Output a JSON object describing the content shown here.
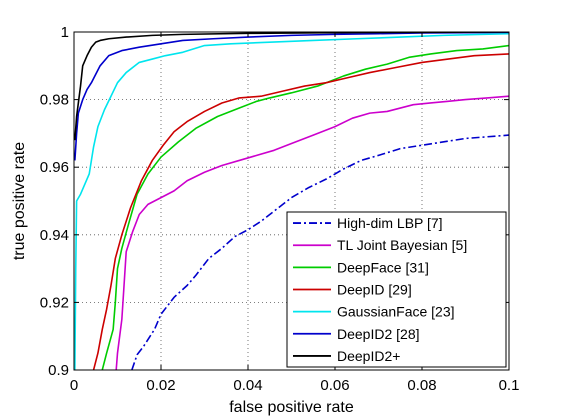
{
  "chart_data": {
    "type": "line",
    "title": "",
    "xlabel": "false positive rate",
    "ylabel": "true positive rate",
    "xlim": [
      0,
      0.1
    ],
    "ylim": [
      0.9,
      1
    ],
    "x_ticks": [
      "0",
      "0.02",
      "0.04",
      "0.06",
      "0.08",
      "0.1"
    ],
    "y_ticks": [
      "0.9",
      "0.92",
      "0.94",
      "0.96",
      "0.98",
      "1"
    ],
    "grid": true,
    "legend_position": "bottom-right",
    "series": [
      {
        "name": "High-dim LBP [7]",
        "color": "#0000cc",
        "dash": "dashdot",
        "points": [
          [
            0.0133,
            0.9
          ],
          [
            0.0145,
            0.9045
          ],
          [
            0.016,
            0.907
          ],
          [
            0.0185,
            0.912
          ],
          [
            0.02,
            0.9165
          ],
          [
            0.023,
            0.9215
          ],
          [
            0.026,
            0.925
          ],
          [
            0.028,
            0.928
          ],
          [
            0.031,
            0.933
          ],
          [
            0.034,
            0.936
          ],
          [
            0.037,
            0.9395
          ],
          [
            0.04,
            0.9415
          ],
          [
            0.043,
            0.944
          ],
          [
            0.046,
            0.947
          ],
          [
            0.05,
            0.951
          ],
          [
            0.054,
            0.954
          ],
          [
            0.058,
            0.9565
          ],
          [
            0.062,
            0.9595
          ],
          [
            0.066,
            0.962
          ],
          [
            0.07,
            0.9635
          ],
          [
            0.075,
            0.9655
          ],
          [
            0.08,
            0.9665
          ],
          [
            0.085,
            0.9675
          ],
          [
            0.09,
            0.9685
          ],
          [
            0.095,
            0.969
          ],
          [
            0.1,
            0.9695
          ]
        ]
      },
      {
        "name": "TL Joint Bayesian [5]",
        "color": "#cc00cc",
        "dash": "solid",
        "points": [
          [
            0.0097,
            0.9
          ],
          [
            0.01,
            0.905
          ],
          [
            0.011,
            0.915
          ],
          [
            0.0115,
            0.925
          ],
          [
            0.012,
            0.935
          ],
          [
            0.0135,
            0.941
          ],
          [
            0.015,
            0.946
          ],
          [
            0.017,
            0.949
          ],
          [
            0.02,
            0.951
          ],
          [
            0.023,
            0.953
          ],
          [
            0.026,
            0.956
          ],
          [
            0.03,
            0.9585
          ],
          [
            0.034,
            0.9605
          ],
          [
            0.038,
            0.962
          ],
          [
            0.042,
            0.9635
          ],
          [
            0.046,
            0.965
          ],
          [
            0.05,
            0.967
          ],
          [
            0.055,
            0.9695
          ],
          [
            0.06,
            0.972
          ],
          [
            0.064,
            0.9745
          ],
          [
            0.068,
            0.976
          ],
          [
            0.072,
            0.9765
          ],
          [
            0.075,
            0.9775
          ],
          [
            0.078,
            0.9785
          ],
          [
            0.082,
            0.979
          ],
          [
            0.086,
            0.9795
          ],
          [
            0.09,
            0.98
          ],
          [
            0.095,
            0.9805
          ],
          [
            0.1,
            0.981
          ]
        ]
      },
      {
        "name": "DeepFace [31]",
        "color": "#00cc00",
        "dash": "solid",
        "points": [
          [
            0.0065,
            0.9
          ],
          [
            0.0075,
            0.905
          ],
          [
            0.009,
            0.912
          ],
          [
            0.0095,
            0.92
          ],
          [
            0.01,
            0.93
          ],
          [
            0.011,
            0.936
          ],
          [
            0.0125,
            0.943
          ],
          [
            0.0145,
            0.952
          ],
          [
            0.017,
            0.958
          ],
          [
            0.02,
            0.963
          ],
          [
            0.024,
            0.9675
          ],
          [
            0.028,
            0.9715
          ],
          [
            0.033,
            0.975
          ],
          [
            0.038,
            0.9775
          ],
          [
            0.042,
            0.9795
          ],
          [
            0.045,
            0.9805
          ],
          [
            0.05,
            0.982
          ],
          [
            0.056,
            0.984
          ],
          [
            0.062,
            0.987
          ],
          [
            0.067,
            0.989
          ],
          [
            0.072,
            0.9905
          ],
          [
            0.077,
            0.9925
          ],
          [
            0.082,
            0.9935
          ],
          [
            0.088,
            0.9945
          ],
          [
            0.094,
            0.995
          ],
          [
            0.1,
            0.996
          ]
        ]
      },
      {
        "name": "DeepID [29]",
        "color": "#cc0000",
        "dash": "solid",
        "points": [
          [
            0.0045,
            0.9
          ],
          [
            0.0055,
            0.905
          ],
          [
            0.0065,
            0.912
          ],
          [
            0.0075,
            0.918
          ],
          [
            0.0085,
            0.925
          ],
          [
            0.0095,
            0.933
          ],
          [
            0.011,
            0.94
          ],
          [
            0.013,
            0.948
          ],
          [
            0.0155,
            0.956
          ],
          [
            0.018,
            0.962
          ],
          [
            0.0205,
            0.9665
          ],
          [
            0.023,
            0.9705
          ],
          [
            0.026,
            0.9735
          ],
          [
            0.03,
            0.9765
          ],
          [
            0.034,
            0.979
          ],
          [
            0.038,
            0.9805
          ],
          [
            0.043,
            0.981
          ],
          [
            0.048,
            0.9825
          ],
          [
            0.053,
            0.984
          ],
          [
            0.058,
            0.985
          ],
          [
            0.063,
            0.9865
          ],
          [
            0.068,
            0.988
          ],
          [
            0.074,
            0.9895
          ],
          [
            0.08,
            0.991
          ],
          [
            0.086,
            0.992
          ],
          [
            0.092,
            0.993
          ],
          [
            0.1,
            0.9935
          ]
        ]
      },
      {
        "name": "GaussianFace [23]",
        "color": "#00e5ee",
        "dash": "solid",
        "points": [
          [
            0.0002,
            0.9
          ],
          [
            0.0004,
            0.93
          ],
          [
            0.0006,
            0.95
          ],
          [
            0.0015,
            0.952
          ],
          [
            0.0025,
            0.955
          ],
          [
            0.0035,
            0.958
          ],
          [
            0.0045,
            0.966
          ],
          [
            0.0055,
            0.972
          ],
          [
            0.007,
            0.977
          ],
          [
            0.0085,
            0.981
          ],
          [
            0.01,
            0.985
          ],
          [
            0.012,
            0.988
          ],
          [
            0.015,
            0.991
          ],
          [
            0.018,
            0.992
          ],
          [
            0.021,
            0.993
          ],
          [
            0.025,
            0.994
          ],
          [
            0.03,
            0.996
          ],
          [
            0.036,
            0.9965
          ],
          [
            0.045,
            0.997
          ],
          [
            0.055,
            0.9975
          ],
          [
            0.065,
            0.998
          ],
          [
            0.075,
            0.9985
          ],
          [
            0.085,
            0.999
          ],
          [
            0.1,
            0.9995
          ]
        ]
      },
      {
        "name": "DeepID2 [28]",
        "color": "#0000cc",
        "dash": "solid",
        "points": [
          [
            0.0002,
            0.962
          ],
          [
            0.0006,
            0.97
          ],
          [
            0.001,
            0.976
          ],
          [
            0.002,
            0.98
          ],
          [
            0.003,
            0.983
          ],
          [
            0.004,
            0.985
          ],
          [
            0.006,
            0.99
          ],
          [
            0.008,
            0.993
          ],
          [
            0.011,
            0.9945
          ],
          [
            0.015,
            0.9955
          ],
          [
            0.02,
            0.9965
          ],
          [
            0.025,
            0.9975
          ],
          [
            0.032,
            0.998
          ],
          [
            0.04,
            0.9985
          ],
          [
            0.05,
            0.999
          ],
          [
            0.06,
            0.9993
          ],
          [
            0.07,
            0.9995
          ],
          [
            0.08,
            0.9997
          ],
          [
            0.09,
            0.9998
          ],
          [
            0.1,
            0.9999
          ]
        ]
      },
      {
        "name": "DeepID2+",
        "color": "#000000",
        "dash": "solid",
        "points": [
          [
            0.0002,
            0.968
          ],
          [
            0.0006,
            0.975
          ],
          [
            0.001,
            0.979
          ],
          [
            0.0015,
            0.984
          ],
          [
            0.002,
            0.99
          ],
          [
            0.003,
            0.993
          ],
          [
            0.004,
            0.9955
          ],
          [
            0.005,
            0.997
          ],
          [
            0.006,
            0.9975
          ],
          [
            0.008,
            0.998
          ],
          [
            0.012,
            0.9985
          ],
          [
            0.018,
            0.999
          ],
          [
            0.025,
            0.9993
          ],
          [
            0.04,
            0.9996
          ],
          [
            0.06,
            0.9998
          ],
          [
            0.08,
            0.9999
          ],
          [
            0.1,
            1.0
          ]
        ]
      }
    ]
  }
}
